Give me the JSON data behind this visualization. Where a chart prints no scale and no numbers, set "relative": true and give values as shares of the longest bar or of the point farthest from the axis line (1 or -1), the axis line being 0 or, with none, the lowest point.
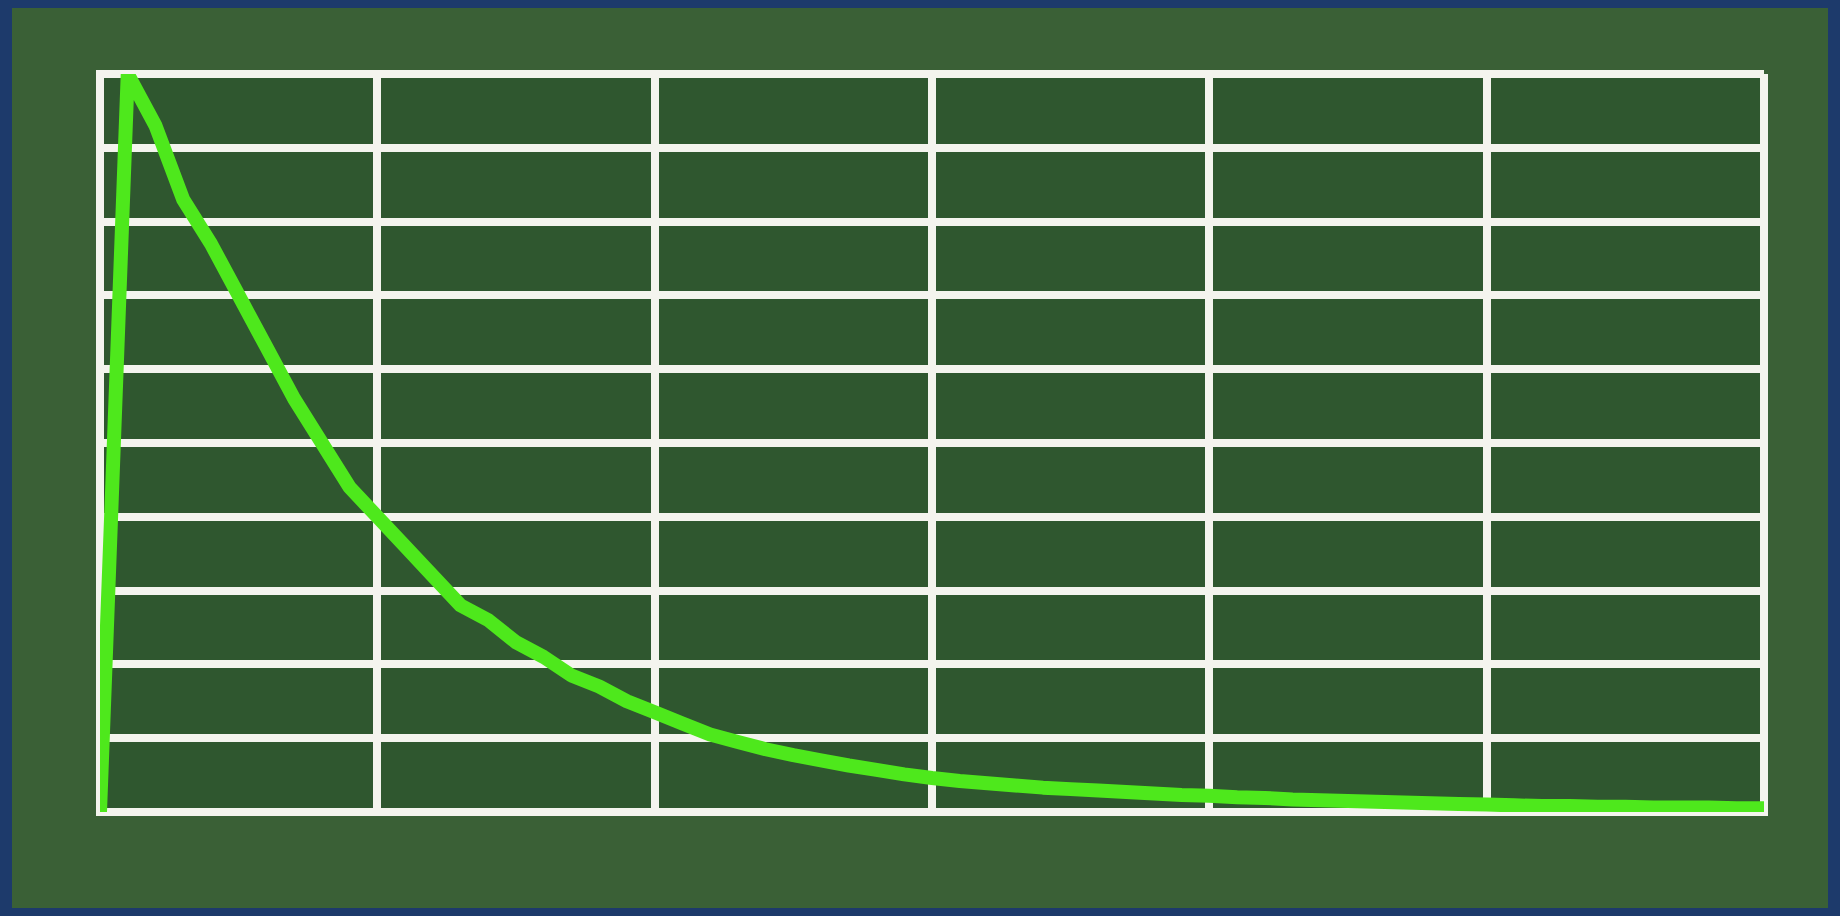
{
  "chart_data": {
    "type": "line",
    "relative": true,
    "grid": true,
    "legend": false,
    "marker": "none",
    "line_style": "solid",
    "categories": [
      null,
      null,
      null,
      null,
      null,
      null,
      null,
      null,
      null,
      null,
      null,
      null,
      null,
      null,
      null,
      null,
      null,
      null,
      null,
      null,
      null,
      null,
      null,
      null,
      null,
      null,
      null,
      null,
      null,
      null,
      null,
      null,
      null,
      null,
      null,
      null,
      null,
      null,
      null,
      null,
      null,
      null,
      null,
      null,
      null,
      null,
      null,
      null,
      null,
      null,
      null,
      null,
      null,
      null,
      null,
      null,
      null,
      null,
      null,
      null,
      null
    ],
    "series": [
      {
        "color": "#4ee81c",
        "values": [
          0,
          1,
          0.93,
          0.83,
          0.77,
          0.7,
          0.63,
          0.56,
          0.5,
          0.44,
          0.4,
          0.36,
          0.32,
          0.28,
          0.26,
          0.23,
          0.21,
          0.185,
          0.17,
          0.15,
          0.135,
          0.12,
          0.105,
          0.095,
          0.085,
          0.077,
          0.07,
          0.063,
          0.057,
          0.051,
          0.046,
          0.042,
          0.039,
          0.036,
          0.033,
          0.031,
          0.029,
          0.027,
          0.025,
          0.023,
          0.022,
          0.02,
          0.019,
          0.017,
          0.016,
          0.015,
          0.014,
          0.013,
          0.012,
          0.011,
          0.01,
          0.009,
          0.008,
          0.008,
          0.007,
          0.007,
          0.006,
          0.006,
          0.006,
          0.005,
          0.005
        ]
      }
    ]
  }
}
